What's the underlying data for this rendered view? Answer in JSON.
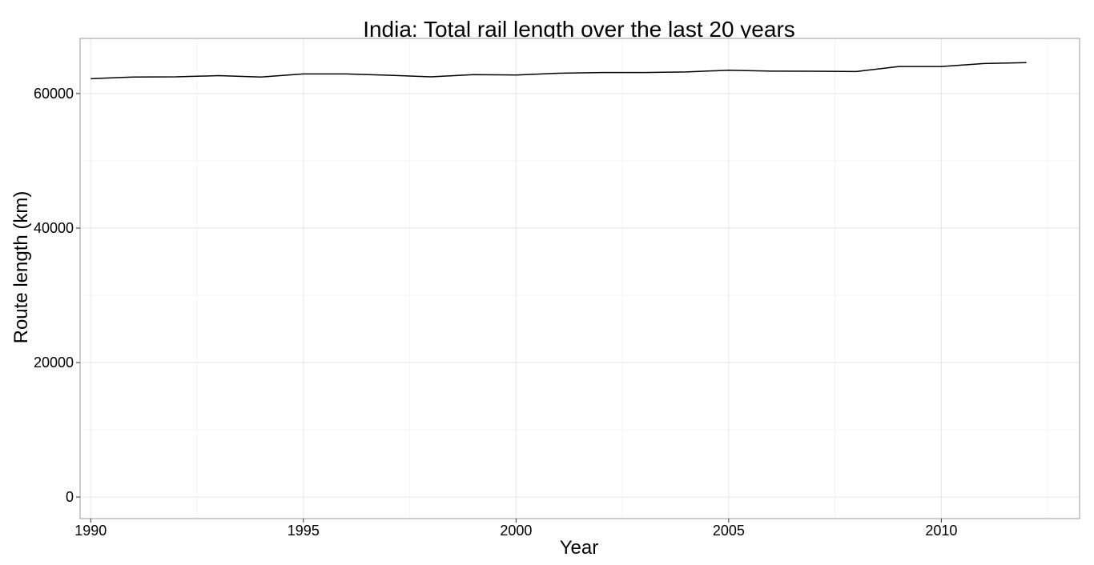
{
  "chart_data": {
    "type": "line",
    "title": "India: Total rail length over the last 20 years",
    "xlabel": "Year",
    "ylabel": "Route length (km)",
    "xlim": [
      1989.75,
      2013.25
    ],
    "ylim": [
      -3200,
      68200
    ],
    "x_ticks": [
      1990,
      1995,
      2000,
      2005,
      2010
    ],
    "x_tick_labels": [
      "1990",
      "1995",
      "2000",
      "2005",
      "2010"
    ],
    "x_minor_ticks": [
      1992.5,
      1997.5,
      2002.5,
      2007.5,
      2012.5
    ],
    "y_ticks": [
      0,
      20000,
      40000,
      60000
    ],
    "y_tick_labels": [
      "0",
      "20000",
      "40000",
      "60000"
    ],
    "y_minor_ticks": [
      10000,
      30000,
      50000
    ],
    "grid": true,
    "legend": "none",
    "colors": {
      "line": "#000000",
      "grid_major": "#e6e6e6",
      "grid_minor": "#f3f3f3",
      "panel_border": "#999999",
      "background": "#ffffff"
    },
    "series": [
      {
        "x": [
          1990,
          1991,
          1992,
          1993,
          1994,
          1995,
          1996,
          1997,
          1998,
          1999,
          2000,
          2001,
          2002,
          2003,
          2004,
          2005,
          2006,
          2007,
          2008,
          2009,
          2010,
          2011,
          2012
        ],
        "values": [
          62211,
          62458,
          62486,
          62660,
          62462,
          62915,
          62915,
          62725,
          62495,
          62809,
          62759,
          63028,
          63122,
          63122,
          63221,
          63465,
          63332,
          63327,
          63273,
          64015,
          64015,
          64460,
          64600
        ]
      }
    ]
  }
}
